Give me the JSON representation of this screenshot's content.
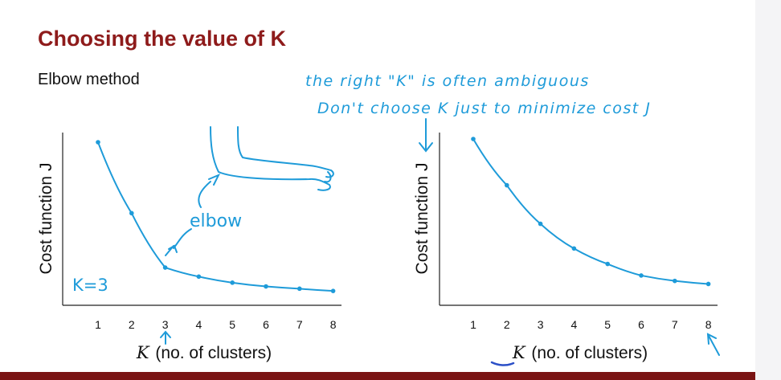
{
  "title": "Choosing the value of K",
  "subtitle": "Elbow method",
  "notes": {
    "line1": "the right \"K\" is often ambiguous",
    "line2": "Don't choose K just to minimize cost J"
  },
  "annotations": {
    "elbow": "elbow",
    "k_choice": "K=3"
  },
  "colors": {
    "title": "#8e1b1b",
    "curve": "#1e9bd9",
    "bottom_bar": "#7a1414"
  },
  "chart_data": [
    {
      "type": "line",
      "x": [
        1,
        2,
        3,
        4,
        5,
        6,
        7,
        8
      ],
      "y": [
        100,
        53,
        17,
        11,
        7,
        4.5,
        3,
        1.5
      ],
      "xlabel_var": "K",
      "xlabel": "(no. of clusters)",
      "ylabel": "Cost function J",
      "xticks": [
        "1",
        "2",
        "3",
        "4",
        "5",
        "6",
        "7",
        "8"
      ],
      "ylim": [
        0,
        100
      ],
      "grid": false
    },
    {
      "type": "line",
      "x": [
        1,
        2,
        3,
        4,
        5,
        6,
        7,
        8
      ],
      "y": [
        100,
        70,
        45,
        29,
        19,
        11.5,
        8,
        6
      ],
      "xlabel_var": "K",
      "xlabel": "(no. of clusters)",
      "ylabel": "Cost function J",
      "xticks": [
        "1",
        "2",
        "3",
        "4",
        "5",
        "6",
        "7",
        "8"
      ],
      "ylim": [
        0,
        100
      ],
      "grid": false
    }
  ]
}
